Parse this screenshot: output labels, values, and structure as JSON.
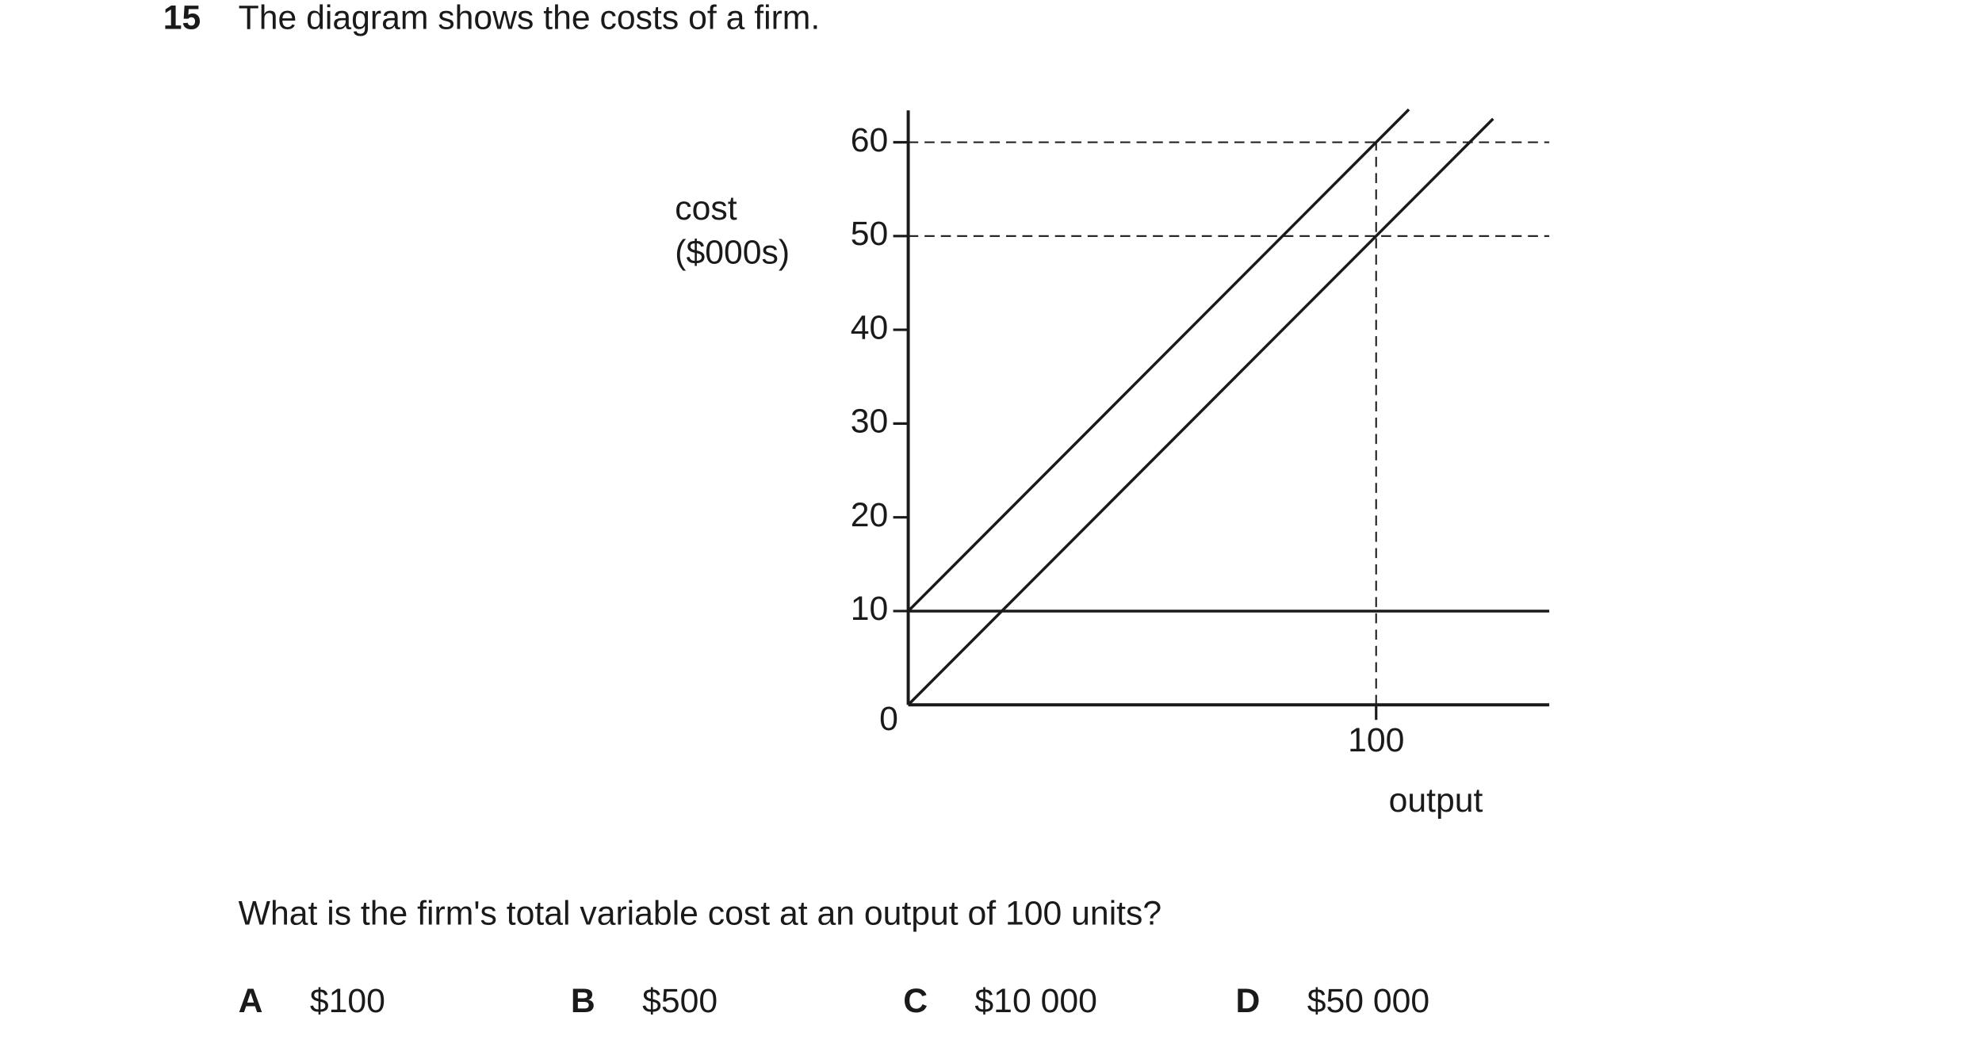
{
  "question": {
    "number": "15",
    "text": "The diagram shows the costs of a firm."
  },
  "chart_data": {
    "type": "line",
    "y_label": [
      "cost",
      "($000s)"
    ],
    "x_label": "output",
    "xlim": [
      0,
      137
    ],
    "ylim": [
      0,
      63.4
    ],
    "xticks": [
      100
    ],
    "yticks": [
      0,
      10,
      20,
      30,
      40,
      50,
      60
    ],
    "hlines": [
      60,
      50
    ],
    "vlines": [
      100
    ],
    "color": "#1a1a1a",
    "series": [
      {
        "x": [
          0,
          107
        ],
        "values": [
          10,
          63.5
        ]
      },
      {
        "x": [
          0,
          125
        ],
        "values": [
          0,
          62.5
        ]
      },
      {
        "x": [
          0,
          137
        ],
        "values": [
          10,
          10
        ]
      }
    ]
  },
  "prompt": "What is the firm's total variable cost at an output of 100 units?",
  "options": [
    {
      "letter": "A",
      "text": "$100"
    },
    {
      "letter": "B",
      "text": "$500"
    },
    {
      "letter": "C",
      "text": "$10 000"
    },
    {
      "letter": "D",
      "text": "$50 000"
    }
  ]
}
